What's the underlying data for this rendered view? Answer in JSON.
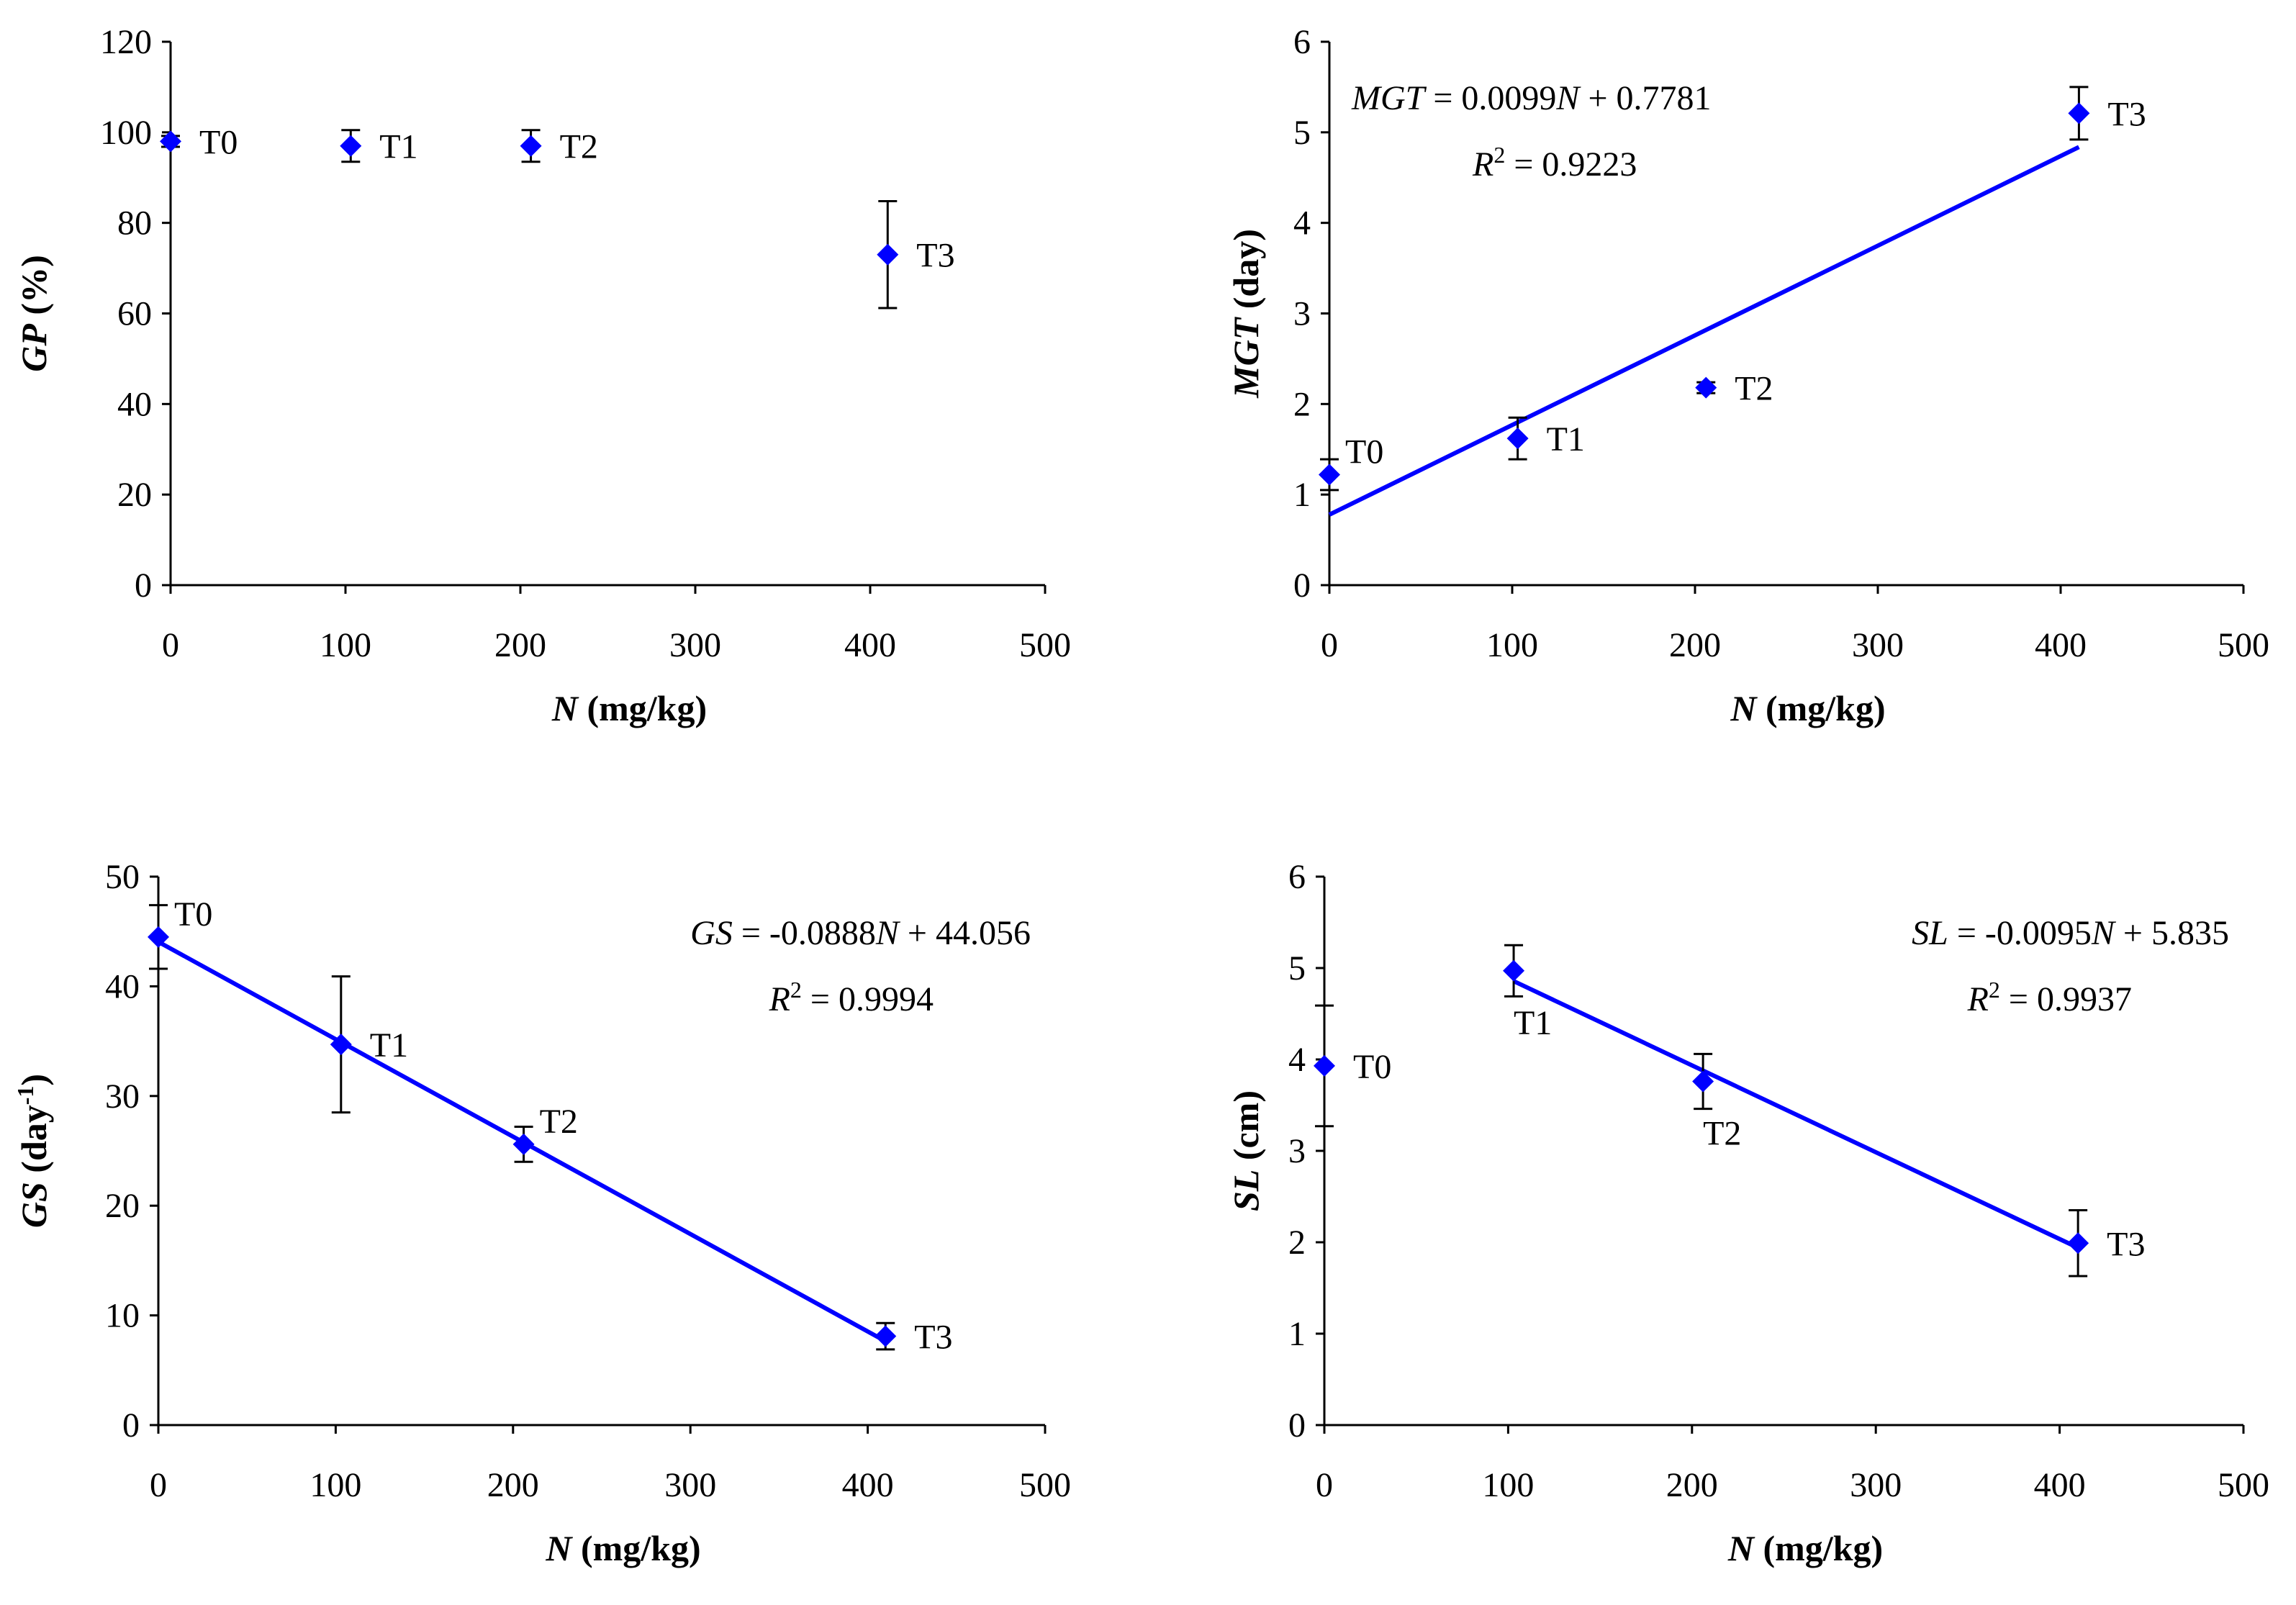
{
  "colors": {
    "marker": "#0000ff",
    "trendline": "#0000ff",
    "axis": "#000000",
    "errorbar": "#000000"
  },
  "chart_data": [
    {
      "id": "gp",
      "type": "scatter",
      "xlabel": {
        "var": "N",
        "unit": " (mg/kg)"
      },
      "ylabel": {
        "var": "GP",
        "unit": " (%)"
      },
      "xlim": [
        0,
        500
      ],
      "ylim": [
        0,
        120
      ],
      "xticks": [
        0,
        100,
        200,
        300,
        400,
        500
      ],
      "yticks": [
        0,
        20,
        40,
        60,
        80,
        100,
        120
      ],
      "points": [
        {
          "label": "T0",
          "x": 0,
          "y": 98,
          "err": 1.2,
          "label_pos": "right"
        },
        {
          "label": "T1",
          "x": 103,
          "y": 97,
          "err": 3.5,
          "label_pos": "right"
        },
        {
          "label": "T2",
          "x": 206,
          "y": 97,
          "err": 3.5,
          "label_pos": "right"
        },
        {
          "label": "T3",
          "x": 410,
          "y": 73,
          "err": 11.8,
          "label_pos": "right"
        }
      ],
      "trendline": null,
      "equation": null
    },
    {
      "id": "mgt",
      "type": "scatter",
      "xlabel": {
        "var": "N",
        "unit": " (mg/kg)"
      },
      "ylabel": {
        "var": "MGT",
        "unit": " (day)"
      },
      "xlim": [
        0,
        500
      ],
      "ylim": [
        0,
        6
      ],
      "xticks": [
        0,
        100,
        200,
        300,
        400,
        500
      ],
      "yticks": [
        0,
        1,
        2,
        3,
        4,
        5,
        6
      ],
      "points": [
        {
          "label": "T0",
          "x": 0,
          "y": 1.22,
          "err": 0.17,
          "label_pos": "upper-right"
        },
        {
          "label": "T1",
          "x": 103,
          "y": 1.62,
          "err": 0.23,
          "label_pos": "right"
        },
        {
          "label": "T2",
          "x": 206,
          "y": 2.18,
          "err": 0.06,
          "label_pos": "right"
        },
        {
          "label": "T3",
          "x": 410,
          "y": 5.21,
          "err": 0.29,
          "label_pos": "right"
        }
      ],
      "trendline": {
        "slope": 0.0099,
        "intercept": 0.7781,
        "x_start": 0,
        "x_end": 410
      },
      "equation": {
        "line1": {
          "var": "MGT",
          "rest": " = 0.0099",
          "x_var": "N",
          "tail": " + 0.7781"
        },
        "line2": {
          "var": "R",
          "sup": "2",
          "rest": " = 0.9223"
        },
        "position": "top-left"
      }
    },
    {
      "id": "gs",
      "type": "scatter",
      "xlabel": {
        "var": "N",
        "unit": " (mg/kg)"
      },
      "ylabel": {
        "var": "GS",
        "unit": " (day",
        "sup": "-1",
        "close": ")"
      },
      "xlim": [
        0,
        500
      ],
      "ylim": [
        0,
        50
      ],
      "xticks": [
        0,
        100,
        200,
        300,
        400,
        500
      ],
      "yticks": [
        0,
        10,
        20,
        30,
        40,
        50
      ],
      "points": [
        {
          "label": "T0",
          "x": 0,
          "y": 44.5,
          "err": 2.9,
          "label_pos": "upper-right"
        },
        {
          "label": "T1",
          "x": 103,
          "y": 34.7,
          "err": 6.2,
          "label_pos": "right"
        },
        {
          "label": "T2",
          "x": 206,
          "y": 25.6,
          "err": 1.6,
          "label_pos": "upper-right"
        },
        {
          "label": "T3",
          "x": 410,
          "y": 8.1,
          "err": 1.2,
          "label_pos": "right"
        }
      ],
      "trendline": {
        "slope": -0.0888,
        "intercept": 44.056,
        "x_start": 0,
        "x_end": 410
      },
      "equation": {
        "line1": {
          "var": "GS",
          "rest": " = -0.0888",
          "x_var": "N",
          "tail": " + 44.056"
        },
        "line2": {
          "var": "R",
          "sup": "2",
          "rest": " = 0.9994"
        },
        "position": "top-right"
      }
    },
    {
      "id": "sl",
      "type": "scatter",
      "xlabel": {
        "var": "N",
        "unit": " (mg/kg)"
      },
      "ylabel": {
        "var": "SL",
        "unit": " (cm)"
      },
      "xlim": [
        0,
        500
      ],
      "ylim": [
        0,
        6
      ],
      "xticks": [
        0,
        100,
        200,
        300,
        400,
        500
      ],
      "yticks": [
        0,
        1,
        2,
        3,
        4,
        5,
        6
      ],
      "points": [
        {
          "label": "T0",
          "x": 0,
          "y": 3.93,
          "err": 0.66,
          "label_pos": "right"
        },
        {
          "label": "T1",
          "x": 103,
          "y": 4.97,
          "err": 0.28,
          "label_pos": "below"
        },
        {
          "label": "T2",
          "x": 206,
          "y": 3.76,
          "err": 0.3,
          "label_pos": "below"
        },
        {
          "label": "T3",
          "x": 410,
          "y": 1.99,
          "err": 0.36,
          "label_pos": "right"
        }
      ],
      "trendline": {
        "slope": -0.0095,
        "intercept": 5.835,
        "x_start": 103,
        "x_end": 410
      },
      "equation": {
        "line1": {
          "var": "SL",
          "rest": " = -0.0095",
          "x_var": "N",
          "tail": " + 5.835"
        },
        "line2": {
          "var": "R",
          "sup": "2",
          "rest": " = 0.9937"
        },
        "position": "top-right"
      }
    }
  ]
}
